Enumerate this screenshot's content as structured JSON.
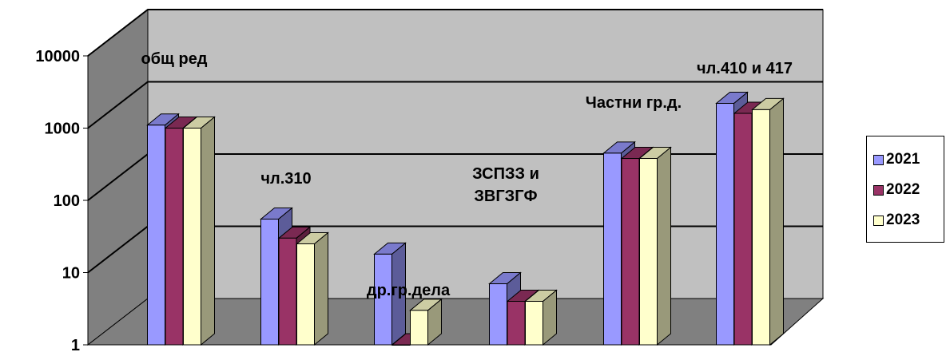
{
  "chart_data": {
    "type": "bar",
    "scale": "log10",
    "ylim": [
      1,
      10000
    ],
    "y_ticks": [
      "1",
      "10",
      "100",
      "1000",
      "10000"
    ],
    "categories": [
      "общ ред",
      "чл.310",
      "др.гр.дела",
      "ЗСПЗЗ и ЗВГЗГФ",
      "Частни гр.д.",
      "чл.410 и 417"
    ],
    "series": [
      {
        "name": "2021",
        "color": "#9999FF",
        "values": [
          1100,
          55,
          18,
          7,
          450,
          2200
        ]
      },
      {
        "name": "2022",
        "color": "#993366",
        "values": [
          1000,
          30,
          1,
          4,
          380,
          1600
        ]
      },
      {
        "name": "2023",
        "color": "#FFFFCC",
        "values": [
          1000,
          25,
          3,
          4,
          380,
          1800
        ]
      }
    ],
    "legend_position": "right",
    "grid": true
  }
}
